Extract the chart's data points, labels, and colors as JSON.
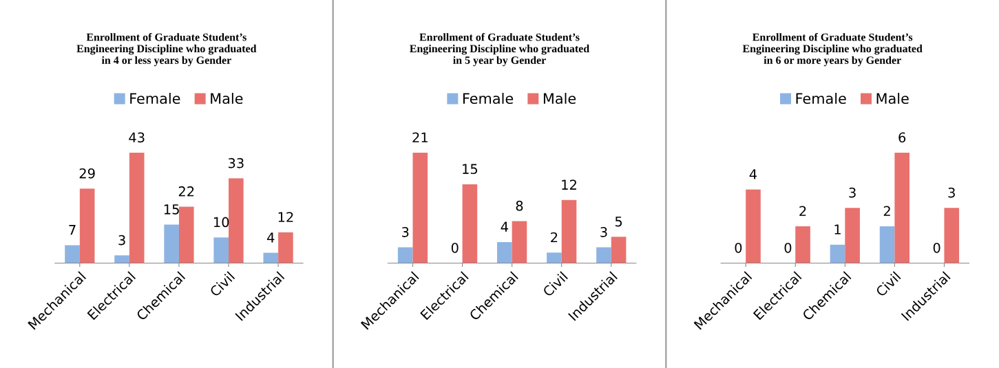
{
  "chart_data": [
    {
      "type": "bar",
      "title": "Enrollment of Graduate Student’s\nEngineering Discipline who graduated\nin 4 or less years by Gender",
      "categories": [
        "Mechanical",
        "Electrical",
        "Chemical",
        "Civil",
        "Industrial"
      ],
      "series": [
        {
          "name": "Female",
          "color": "#8db3e2",
          "values": [
            7,
            3,
            15,
            10,
            4
          ]
        },
        {
          "name": "Male",
          "color": "#e8716e",
          "values": [
            29,
            43,
            22,
            33,
            12
          ]
        }
      ],
      "data_labels": true,
      "legend": "top",
      "grid": false
    },
    {
      "type": "bar",
      "title": "Enrollment of Graduate Student’s\nEngineering Discipline who graduated\nin 5 year by Gender",
      "categories": [
        "Mechanical",
        "Electrical",
        "Chemical",
        "Civil",
        "Industrial"
      ],
      "series": [
        {
          "name": "Female",
          "color": "#8db3e2",
          "values": [
            3,
            0,
            4,
            2,
            3
          ]
        },
        {
          "name": "Male",
          "color": "#e8716e",
          "values": [
            21,
            15,
            8,
            12,
            5
          ]
        }
      ],
      "data_labels": true,
      "legend": "top",
      "grid": false
    },
    {
      "type": "bar",
      "title": "Enrollment of Graduate Student’s\nEngineering Discipline who graduated\nin 6 or more years by Gender",
      "categories": [
        "Mechanical",
        "Electrical",
        "Chemical",
        "Civil",
        "Industrial"
      ],
      "series": [
        {
          "name": "Female",
          "color": "#8db3e2",
          "values": [
            0,
            0,
            1,
            2,
            0
          ]
        },
        {
          "name": "Male",
          "color": "#e8716e",
          "values": [
            4,
            2,
            3,
            6,
            3
          ]
        }
      ],
      "data_labels": true,
      "legend": "top",
      "grid": false
    }
  ]
}
